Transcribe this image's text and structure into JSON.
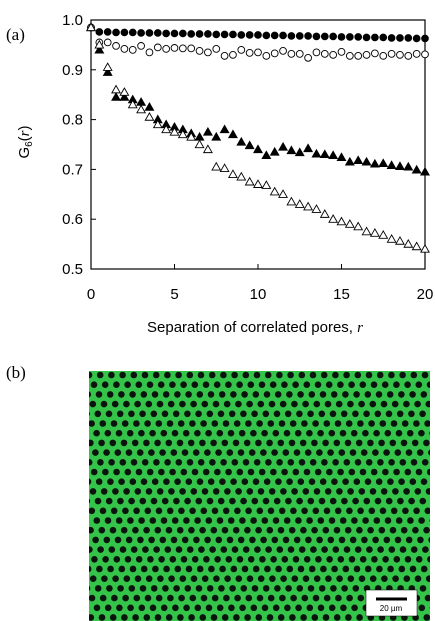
{
  "panel_a_label": "(a)",
  "panel_b_label": "(b)",
  "chart_data": {
    "type": "scatter",
    "xlabel": "Separation of correlated pores, r",
    "xlabel_text": "Separation of correlated pores, ",
    "xlabel_var": "r",
    "ylabel": "G6(r)",
    "ylabel_main": "G",
    "ylabel_sub": "6",
    "ylabel_open": "(",
    "ylabel_var": "r",
    "ylabel_close": ")",
    "xlim": [
      0,
      20
    ],
    "ylim": [
      0.5,
      1.0
    ],
    "xticks": [
      "0",
      "5",
      "10",
      "15",
      "20"
    ],
    "yticks": [
      "0.5",
      "0.6",
      "0.7",
      "0.8",
      "0.9",
      "1.0"
    ],
    "grid": false,
    "legend": "none",
    "series": [
      {
        "marker": "filled-circle",
        "x": [
          0,
          0.5,
          1,
          1.5,
          2,
          2.5,
          3,
          3.5,
          4,
          4.5,
          5,
          5.5,
          6,
          6.5,
          7,
          7.5,
          8,
          8.5,
          9,
          9.5,
          10,
          10.5,
          11,
          11.5,
          12,
          12.5,
          13,
          13.5,
          14,
          14.5,
          15,
          15.5,
          16,
          16.5,
          17,
          17.5,
          18,
          18.5,
          19,
          19.5,
          20
        ],
        "y": [
          0.985,
          0.976,
          0.976,
          0.975,
          0.975,
          0.975,
          0.974,
          0.974,
          0.974,
          0.973,
          0.973,
          0.973,
          0.972,
          0.972,
          0.972,
          0.971,
          0.971,
          0.971,
          0.97,
          0.97,
          0.97,
          0.969,
          0.969,
          0.969,
          0.968,
          0.968,
          0.968,
          0.967,
          0.967,
          0.967,
          0.966,
          0.966,
          0.966,
          0.965,
          0.965,
          0.965,
          0.964,
          0.964,
          0.964,
          0.963,
          0.963
        ]
      },
      {
        "marker": "open-circle",
        "x": [
          0,
          0.5,
          1,
          1.5,
          2,
          2.5,
          3,
          3.5,
          4,
          4.5,
          5,
          5.5,
          6,
          6.5,
          7,
          7.5,
          8,
          8.5,
          9,
          9.5,
          10,
          10.5,
          11,
          11.5,
          12,
          12.5,
          13,
          13.5,
          14,
          14.5,
          15,
          15.5,
          16,
          16.5,
          17,
          17.5,
          18,
          18.5,
          19,
          19.5,
          20
        ],
        "y": [
          0.985,
          0.955,
          0.955,
          0.948,
          0.942,
          0.94,
          0.948,
          0.935,
          0.945,
          0.942,
          0.944,
          0.943,
          0.943,
          0.938,
          0.935,
          0.942,
          0.928,
          0.93,
          0.94,
          0.934,
          0.935,
          0.928,
          0.933,
          0.938,
          0.932,
          0.932,
          0.924,
          0.935,
          0.932,
          0.93,
          0.936,
          0.928,
          0.928,
          0.93,
          0.933,
          0.928,
          0.932,
          0.93,
          0.928,
          0.932,
          0.931
        ]
      },
      {
        "marker": "filled-triangle",
        "x": [
          0,
          0.5,
          1,
          1.5,
          2,
          2.5,
          3,
          3.5,
          4,
          4.5,
          5,
          5.5,
          6,
          6.5,
          7,
          7.5,
          8,
          8.5,
          9,
          9.5,
          10,
          10.5,
          11,
          11.5,
          12,
          12.5,
          13,
          13.5,
          14,
          14.5,
          15,
          15.5,
          16,
          16.5,
          17,
          17.5,
          18,
          18.5,
          19,
          19.5,
          20
        ],
        "y": [
          0.985,
          0.94,
          0.895,
          0.845,
          0.845,
          0.84,
          0.835,
          0.825,
          0.8,
          0.79,
          0.785,
          0.78,
          0.772,
          0.765,
          0.775,
          0.765,
          0.78,
          0.77,
          0.755,
          0.748,
          0.74,
          0.728,
          0.735,
          0.745,
          0.738,
          0.734,
          0.742,
          0.731,
          0.73,
          0.728,
          0.724,
          0.715,
          0.718,
          0.715,
          0.711,
          0.712,
          0.708,
          0.706,
          0.705,
          0.699,
          0.695
        ]
      },
      {
        "marker": "open-triangle",
        "x": [
          0,
          0.5,
          1,
          1.5,
          2,
          2.5,
          3,
          3.5,
          4,
          4.5,
          5,
          5.5,
          6,
          6.5,
          7,
          7.5,
          8,
          8.5,
          9,
          9.5,
          10,
          10.5,
          11,
          11.5,
          12,
          12.5,
          13,
          13.5,
          14,
          14.5,
          15,
          15.5,
          16,
          16.5,
          17,
          17.5,
          18,
          18.5,
          19,
          19.5,
          20
        ],
        "y": [
          0.985,
          0.95,
          0.905,
          0.86,
          0.855,
          0.83,
          0.82,
          0.805,
          0.79,
          0.78,
          0.775,
          0.77,
          0.765,
          0.75,
          0.74,
          0.705,
          0.702,
          0.69,
          0.685,
          0.675,
          0.67,
          0.668,
          0.655,
          0.65,
          0.635,
          0.63,
          0.625,
          0.62,
          0.61,
          0.6,
          0.595,
          0.59,
          0.585,
          0.575,
          0.572,
          0.568,
          0.56,
          0.556,
          0.55,
          0.545,
          0.54
        ]
      }
    ]
  },
  "micrograph": {
    "background_color": "#35c44a",
    "pore_color": "#0b140c",
    "scale_bar_label": "20 µm"
  }
}
